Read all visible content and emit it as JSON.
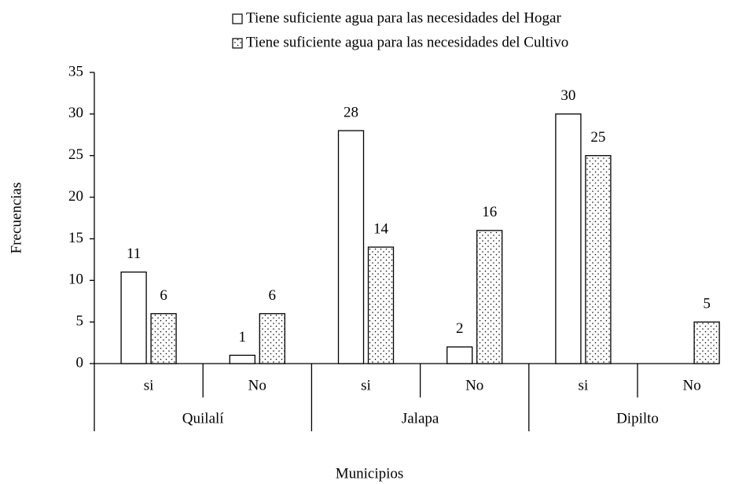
{
  "chart_data": {
    "type": "bar",
    "x_label": "Municipios",
    "y_label": "Frecuencias",
    "categories": [
      "si",
      "No",
      "si",
      "No",
      "si",
      "No"
    ],
    "groups": [
      "Quilalí",
      "Jalapa",
      "Dipilto"
    ],
    "series": [
      {
        "name": "Tiene suficiente agua para las necesidades del Hogar",
        "color": "#ffffff",
        "hatch": "none",
        "values": [
          11,
          1,
          28,
          2,
          30,
          null
        ]
      },
      {
        "name": "Tiene suficiente agua para las necesidades del Cultivo",
        "color": "#ffffff",
        "hatch": "dots",
        "values": [
          6,
          6,
          14,
          16,
          25,
          5
        ]
      }
    ],
    "ylim": [
      0,
      35
    ],
    "yticks": [
      0,
      5,
      10,
      15,
      20,
      25,
      30,
      35
    ],
    "grid": false,
    "legend": "top"
  }
}
